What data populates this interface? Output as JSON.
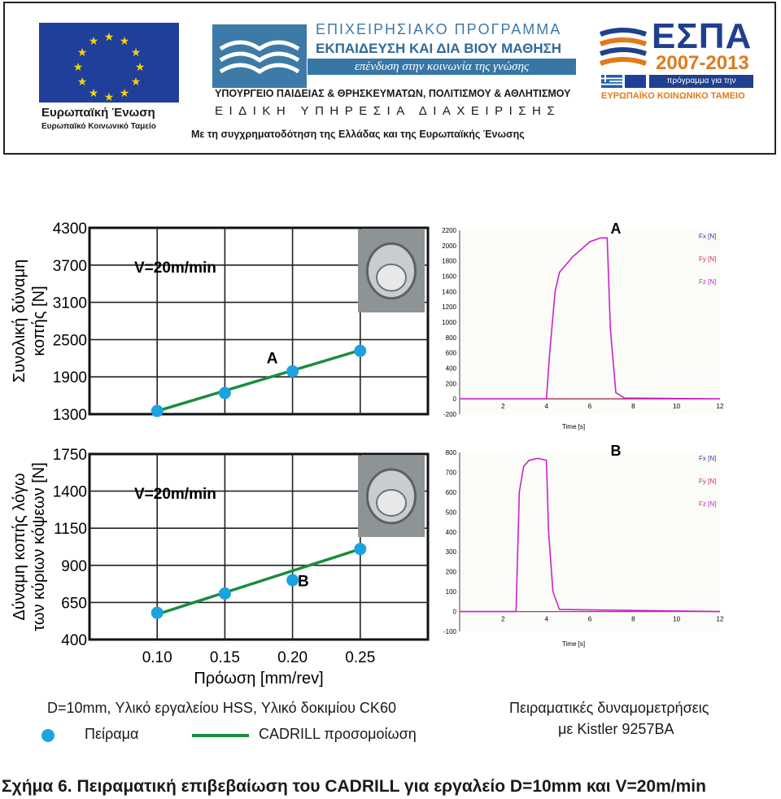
{
  "banner": {
    "eu_name": "Ευρωπαϊκή Ένωση",
    "eu_fund": "Ευρωπαϊκό Κοινωνικό Ταμείο",
    "program_line1": "ΕΠΙΧΕΙΡΗΣΙΑΚΟ ΠΡΟΓΡΑΜΜΑ",
    "program_line2": "ΕΚΠΑΙΔΕΥΣΗ ΚΑΙ ΔΙΑ ΒΙΟΥ ΜΑΘΗΣΗ",
    "program_slogan": "επένδυση στην κοινωνία της γνώσης",
    "ministry": "ΥΠΟΥΡΓΕΙΟ ΠΑΙΔΕΙΑΣ & ΘΡΗΣΚΕΥΜΑΤΩΝ, ΠΟΛΙΤΙΣΜΟΥ & ΑΘΛΗΤΙΣΜΟΥ",
    "agency": "ΕΙΔΙΚΗ ΥΠΗΡΕΣΙΑ ΔΙΑΧΕΙΡΙΣΗΣ",
    "cofunding": "Με τη συγχρηματοδότηση της Ελλάδας και της Ευρωπαϊκής Ένωσης",
    "espa_title": "ΕΣΠΑ",
    "espa_years": "2007-2013",
    "espa_program": "πρόγραμμα για την ανάπτυξη",
    "espa_fund": "ΕΥΡΩΠΑΪΚΟ ΚΟΙΝΩΝΙΚΟ ΤΑΜΕΙΟ",
    "colors": {
      "eu_blue": "#1f3f9b",
      "eu_gold": "#f4d10b",
      "program_blue": "#3777a5",
      "espa_orange": "#e07a1a"
    }
  },
  "chart_data": [
    {
      "type": "scatter",
      "title": "V=20m/min",
      "ylabel": [
        "Συνολική δύναμη",
        "κοπής [N]"
      ],
      "yticks": [
        1300,
        1900,
        2500,
        3100,
        3700,
        4300
      ],
      "ylim": [
        1300,
        4300
      ],
      "xticks": [
        0.1,
        0.15,
        0.2,
        0.25
      ],
      "xlim": [
        0.05,
        0.3
      ],
      "grid": true,
      "series": [
        {
          "name": "Πείραμα",
          "kind": "points",
          "color": "#1aa3e0",
          "x": [
            0.1,
            0.15,
            0.2,
            0.25
          ],
          "y": [
            1350,
            1640,
            1990,
            2320
          ]
        },
        {
          "name": "CADRILL προσομοίωση",
          "kind": "line",
          "color": "#1a8c3f",
          "x": [
            0.1,
            0.25
          ],
          "y": [
            1350,
            2330
          ]
        }
      ],
      "annotations": [
        {
          "text": "A",
          "x": 0.185,
          "y": 2120
        }
      ]
    },
    {
      "type": "scatter",
      "title": "V=20m/min",
      "ylabel": [
        "Δύναμη κοπής λόγω",
        "των κύριων κόψεων [N]"
      ],
      "yticks": [
        400,
        650,
        900,
        1150,
        1400,
        1750
      ],
      "ylim": [
        400,
        1750
      ],
      "xticks": [
        0.1,
        0.15,
        0.2,
        0.25
      ],
      "xlim": [
        0.05,
        0.3
      ],
      "xlabel": "Πρόωση [mm/rev]",
      "grid": true,
      "series": [
        {
          "name": "Πείραμα",
          "kind": "points",
          "color": "#1aa3e0",
          "x": [
            0.1,
            0.15,
            0.2,
            0.25
          ],
          "y": [
            580,
            710,
            800,
            1010
          ]
        },
        {
          "name": "CADRILL προσομοίωση",
          "kind": "line",
          "color": "#1a8c3f",
          "x": [
            0.1,
            0.25
          ],
          "y": [
            570,
            1010
          ]
        }
      ],
      "annotations": [
        {
          "text": "B",
          "x": 0.208,
          "y": 760
        }
      ]
    },
    {
      "type": "line",
      "label": "A",
      "xlabel": "Time [s]",
      "xticks": [
        0,
        2,
        4,
        6,
        8,
        10,
        12
      ],
      "xlim": [
        0,
        12
      ],
      "yticks": [
        -200,
        0,
        200,
        400,
        600,
        800,
        1000,
        1200,
        1400,
        1600,
        1800,
        2000,
        2200
      ],
      "ylim": [
        -200,
        2200
      ],
      "legend": [
        "Fx [N]",
        "Fy [N]",
        "Fz [N]"
      ],
      "legend_colors": [
        "#3b3b9a",
        "#cc3344",
        "#cc22cc"
      ],
      "series": [
        {
          "name": "Fz [N]",
          "x": [
            0,
            4.0,
            4.15,
            4.4,
            4.6,
            4.9,
            5.2,
            5.6,
            6.0,
            6.5,
            6.8,
            6.95,
            7.2,
            7.6,
            12
          ],
          "y": [
            0,
            0,
            600,
            1400,
            1650,
            1750,
            1850,
            1950,
            2050,
            2100,
            2100,
            900,
            80,
            10,
            0
          ]
        },
        {
          "name": "Fy [N]",
          "x": [
            0,
            12
          ],
          "y": [
            0,
            0
          ]
        },
        {
          "name": "Fx [N]",
          "x": [
            0,
            12
          ],
          "y": [
            0,
            0
          ]
        }
      ]
    },
    {
      "type": "line",
      "label": "B",
      "xlabel": "Time [s]",
      "xticks": [
        0,
        2,
        4,
        6,
        8,
        10,
        12
      ],
      "xlim": [
        0,
        12
      ],
      "yticks": [
        -100,
        0,
        100,
        200,
        300,
        400,
        500,
        600,
        700,
        800
      ],
      "ylim": [
        -100,
        800
      ],
      "legend": [
        "Fx [N]",
        "Fy [N]",
        "Fz [N]"
      ],
      "legend_colors": [
        "#3b3b9a",
        "#cc3344",
        "#cc22cc"
      ],
      "series": [
        {
          "name": "Fz [N]",
          "x": [
            0,
            2.6,
            2.75,
            2.95,
            3.2,
            3.6,
            4.0,
            4.1,
            4.3,
            4.6,
            12
          ],
          "y": [
            0,
            0,
            600,
            730,
            760,
            770,
            760,
            400,
            100,
            10,
            0
          ]
        },
        {
          "name": "Fy [N]",
          "x": [
            0,
            12
          ],
          "y": [
            0,
            0
          ]
        },
        {
          "name": "Fx [N]",
          "x": [
            0,
            12
          ],
          "y": [
            0,
            0
          ]
        }
      ]
    }
  ],
  "legend": {
    "conditions": "D=10mm, Υλικό εργαλείου HSS, Υλικό δοκιμίου CK60",
    "experiment": "Πείραμα",
    "simulation": "CADRILL προσομοίωση"
  },
  "right_note": {
    "line1": "Πειραματικές δυναμομετρήσεις",
    "line2": "με Kistler 9257BA"
  },
  "caption": "Σχήμα 6. Πειραματική επιβεβαίωση του CADRILL για εργαλείο D=10mm και V=20m/min"
}
